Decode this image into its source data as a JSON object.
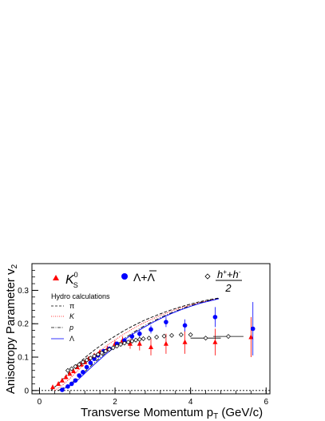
{
  "chart_data": {
    "type": "scatter",
    "xlabel_main": "Transverse Momentum p",
    "xlabel_sub": "T",
    "xlabel_unit": " (GeV/c)",
    "ylabel_main": "Anisotropy Parameter  v",
    "ylabel_sub": "2",
    "xlim": [
      -0.2,
      6.1
    ],
    "ylim": [
      -0.01,
      0.38
    ],
    "xticks": [
      "0",
      "2",
      "4",
      "6"
    ],
    "yticks": [
      "0",
      "0.1",
      "0.2",
      "0.3"
    ],
    "legend": {
      "k0s_main": "K",
      "k0s_sup": "0",
      "k0s_sub": "S",
      "lambda": "Λ+Λ",
      "hadron_num": "h",
      "hadron_num_plus": "+",
      "hadron_num_mid": "+h",
      "hadron_num_minus": "-",
      "hadron_den": "2",
      "hydro_title": "Hydro calculations",
      "hydro_pi": "π",
      "hydro_k": "K",
      "hydro_p": "p",
      "hydro_lambda": "Λ"
    },
    "colors": {
      "k0s": "#ff0000",
      "lambda": "#0000ff",
      "hadron": "#000000",
      "hydro_pi": "#000000",
      "hydro_k": "#ff0000",
      "hydro_p": "#000000",
      "hydro_lambda": "#0000ff"
    },
    "series": [
      {
        "name": "K",
        "marker": "triangle",
        "points": [
          {
            "x": 0.35,
            "y": 0.01,
            "err": 0.004
          },
          {
            "x": 0.5,
            "y": 0.02,
            "err": 0.004
          },
          {
            "x": 0.6,
            "y": 0.03,
            "err": 0.005
          },
          {
            "x": 0.7,
            "y": 0.04,
            "err": 0.005
          },
          {
            "x": 0.8,
            "y": 0.05,
            "err": 0.005
          },
          {
            "x": 0.9,
            "y": 0.058,
            "err": 0.005
          },
          {
            "x": 1.0,
            "y": 0.07,
            "err": 0.005
          },
          {
            "x": 1.1,
            "y": 0.078,
            "err": 0.005
          },
          {
            "x": 1.2,
            "y": 0.085,
            "err": 0.005
          },
          {
            "x": 1.3,
            "y": 0.095,
            "err": 0.006
          },
          {
            "x": 1.45,
            "y": 0.105,
            "err": 0.007
          },
          {
            "x": 1.6,
            "y": 0.115,
            "err": 0.008
          },
          {
            "x": 1.8,
            "y": 0.125,
            "err": 0.009
          },
          {
            "x": 2.0,
            "y": 0.14,
            "err": 0.01
          },
          {
            "x": 2.2,
            "y": 0.15,
            "err": 0.012
          },
          {
            "x": 2.4,
            "y": 0.14,
            "err": 0.015
          },
          {
            "x": 2.65,
            "y": 0.14,
            "err": 0.02
          },
          {
            "x": 2.95,
            "y": 0.13,
            "err": 0.025
          },
          {
            "x": 3.35,
            "y": 0.14,
            "err": 0.03
          },
          {
            "x": 3.85,
            "y": 0.145,
            "err": 0.035
          },
          {
            "x": 4.65,
            "y": 0.145,
            "err": 0.04
          },
          {
            "x": 5.6,
            "y": 0.16,
            "err": 0.06
          }
        ]
      },
      {
        "name": "Λ+Λ",
        "marker": "circle",
        "points": [
          {
            "x": 0.6,
            "y": 0.002,
            "err": 0.004
          },
          {
            "x": 0.75,
            "y": 0.012,
            "err": 0.004
          },
          {
            "x": 0.85,
            "y": 0.02,
            "err": 0.004
          },
          {
            "x": 0.95,
            "y": 0.03,
            "err": 0.004
          },
          {
            "x": 1.05,
            "y": 0.045,
            "err": 0.004
          },
          {
            "x": 1.15,
            "y": 0.055,
            "err": 0.004
          },
          {
            "x": 1.25,
            "y": 0.07,
            "err": 0.005
          },
          {
            "x": 1.35,
            "y": 0.083,
            "err": 0.005
          },
          {
            "x": 1.45,
            "y": 0.095,
            "err": 0.005
          },
          {
            "x": 1.55,
            "y": 0.105,
            "err": 0.005
          },
          {
            "x": 1.7,
            "y": 0.118,
            "err": 0.006
          },
          {
            "x": 1.85,
            "y": 0.125,
            "err": 0.006
          },
          {
            "x": 2.05,
            "y": 0.14,
            "err": 0.007
          },
          {
            "x": 2.25,
            "y": 0.15,
            "err": 0.008
          },
          {
            "x": 2.45,
            "y": 0.162,
            "err": 0.009
          },
          {
            "x": 2.65,
            "y": 0.17,
            "err": 0.01
          },
          {
            "x": 2.95,
            "y": 0.183,
            "err": 0.012
          },
          {
            "x": 3.35,
            "y": 0.205,
            "err": 0.015
          },
          {
            "x": 3.85,
            "y": 0.195,
            "err": 0.018
          },
          {
            "x": 4.65,
            "y": 0.22,
            "err": 0.03
          },
          {
            "x": 5.65,
            "y": 0.185,
            "err": 0.08
          }
        ]
      },
      {
        "name": "h",
        "marker": "diamond",
        "points": [
          {
            "x": 0.75,
            "y": 0.06
          },
          {
            "x": 0.85,
            "y": 0.065
          },
          {
            "x": 0.95,
            "y": 0.072
          },
          {
            "x": 1.05,
            "y": 0.078
          },
          {
            "x": 1.15,
            "y": 0.085
          },
          {
            "x": 1.25,
            "y": 0.091
          },
          {
            "x": 1.35,
            "y": 0.097
          },
          {
            "x": 1.45,
            "y": 0.103
          },
          {
            "x": 1.55,
            "y": 0.108
          },
          {
            "x": 1.65,
            "y": 0.113
          },
          {
            "x": 1.75,
            "y": 0.118
          },
          {
            "x": 1.85,
            "y": 0.123
          },
          {
            "x": 1.95,
            "y": 0.128
          },
          {
            "x": 2.05,
            "y": 0.133
          },
          {
            "x": 2.15,
            "y": 0.138
          },
          {
            "x": 2.25,
            "y": 0.142
          },
          {
            "x": 2.35,
            "y": 0.145
          },
          {
            "x": 2.45,
            "y": 0.148
          },
          {
            "x": 2.55,
            "y": 0.151
          },
          {
            "x": 2.65,
            "y": 0.153
          },
          {
            "x": 2.75,
            "y": 0.155
          },
          {
            "x": 2.9,
            "y": 0.157
          },
          {
            "x": 3.1,
            "y": 0.16
          },
          {
            "x": 3.3,
            "y": 0.163
          },
          {
            "x": 3.5,
            "y": 0.165
          },
          {
            "x": 3.75,
            "y": 0.167
          },
          {
            "x": 4.0,
            "y": 0.167
          },
          {
            "x": 4.4,
            "y": 0.157,
            "xerr": 0.4
          },
          {
            "x": 5.0,
            "y": 0.162,
            "xerr": 0.4
          }
        ]
      }
    ],
    "hydro": [
      {
        "name": "π",
        "style": "dashed",
        "points": [
          [
            0.3,
            0.0
          ],
          [
            0.5,
            0.02
          ],
          [
            0.75,
            0.05
          ],
          [
            1.0,
            0.078
          ],
          [
            1.25,
            0.103
          ],
          [
            1.5,
            0.125
          ],
          [
            1.75,
            0.145
          ],
          [
            2.0,
            0.163
          ],
          [
            2.25,
            0.18
          ],
          [
            2.5,
            0.195
          ],
          [
            2.75,
            0.209
          ],
          [
            3.0,
            0.221
          ],
          [
            3.25,
            0.232
          ],
          [
            3.5,
            0.242
          ],
          [
            3.75,
            0.251
          ],
          [
            4.0,
            0.259
          ],
          [
            4.25,
            0.266
          ],
          [
            4.5,
            0.272
          ],
          [
            4.75,
            0.277
          ]
        ]
      },
      {
        "name": "K",
        "style": "dotted",
        "points": [
          [
            0.4,
            0.0
          ],
          [
            0.6,
            0.015
          ],
          [
            0.8,
            0.035
          ],
          [
            1.0,
            0.058
          ],
          [
            1.25,
            0.085
          ],
          [
            1.5,
            0.11
          ],
          [
            1.75,
            0.132
          ],
          [
            2.0,
            0.152
          ],
          [
            2.25,
            0.17
          ],
          [
            2.5,
            0.187
          ],
          [
            2.75,
            0.202
          ],
          [
            3.0,
            0.215
          ],
          [
            3.25,
            0.227
          ],
          [
            3.5,
            0.238
          ],
          [
            3.75,
            0.248
          ],
          [
            4.0,
            0.256
          ],
          [
            4.25,
            0.264
          ],
          [
            4.5,
            0.27
          ],
          [
            4.75,
            0.276
          ]
        ]
      },
      {
        "name": "p",
        "style": "dashdot",
        "points": [
          [
            0.5,
            0.0
          ],
          [
            0.75,
            0.015
          ],
          [
            1.0,
            0.035
          ],
          [
            1.25,
            0.062
          ],
          [
            1.5,
            0.088
          ],
          [
            1.75,
            0.112
          ],
          [
            2.0,
            0.135
          ],
          [
            2.25,
            0.156
          ],
          [
            2.5,
            0.175
          ],
          [
            2.75,
            0.192
          ],
          [
            3.0,
            0.207
          ],
          [
            3.25,
            0.221
          ],
          [
            3.5,
            0.233
          ],
          [
            3.75,
            0.244
          ],
          [
            4.0,
            0.254
          ],
          [
            4.25,
            0.263
          ],
          [
            4.5,
            0.27
          ],
          [
            4.75,
            0.276
          ]
        ]
      },
      {
        "name": "Λ",
        "style": "solid",
        "points": [
          [
            0.55,
            0.0
          ],
          [
            0.8,
            0.015
          ],
          [
            1.0,
            0.03
          ],
          [
            1.25,
            0.057
          ],
          [
            1.5,
            0.083
          ],
          [
            1.75,
            0.108
          ],
          [
            2.0,
            0.131
          ],
          [
            2.25,
            0.152
          ],
          [
            2.5,
            0.171
          ],
          [
            2.75,
            0.188
          ],
          [
            3.0,
            0.204
          ],
          [
            3.25,
            0.218
          ],
          [
            3.5,
            0.231
          ],
          [
            3.75,
            0.242
          ],
          [
            4.0,
            0.252
          ],
          [
            4.25,
            0.261
          ],
          [
            4.5,
            0.268
          ],
          [
            4.75,
            0.275
          ]
        ]
      }
    ]
  }
}
